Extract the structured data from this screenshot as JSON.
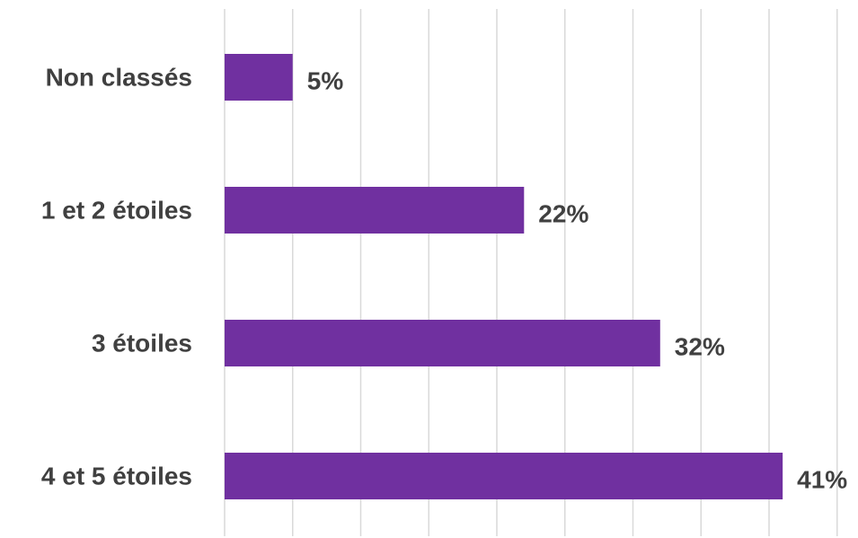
{
  "chart_data": {
    "type": "bar",
    "orientation": "horizontal",
    "categories": [
      "Non classés",
      "1 et 2 étoiles",
      "3 étoiles",
      "4 et 5 étoiles"
    ],
    "values": [
      5,
      22,
      32,
      41
    ],
    "value_labels": [
      "5%",
      "22%",
      "32%",
      "41%"
    ],
    "unit": "%",
    "xlim": [
      0,
      45
    ],
    "grid": true,
    "bar_color": "#7030a0",
    "text_color": "#404040",
    "grid_color": "#d9d9d9"
  }
}
